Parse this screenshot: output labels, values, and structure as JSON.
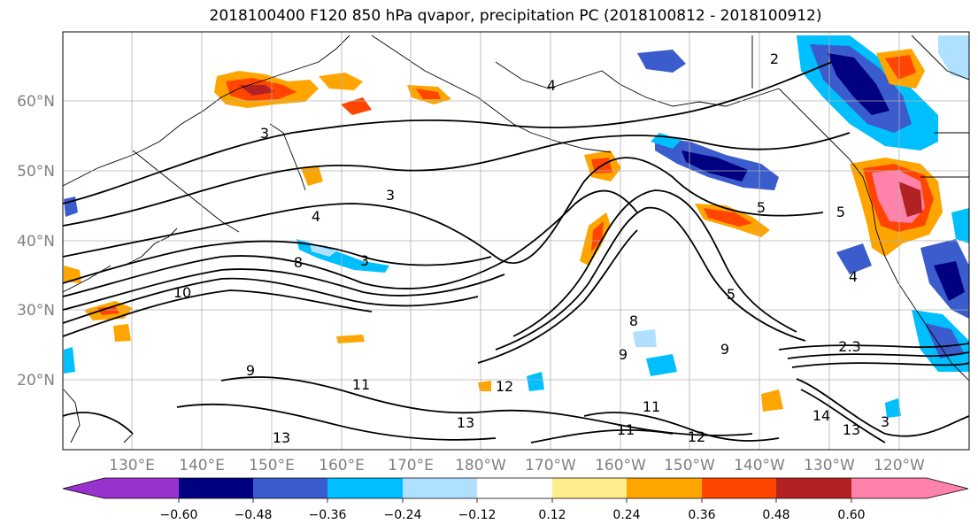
{
  "title": "2018100400 F120 850 hPa qvapor, precipitation PC (2018100812 - 2018100912)",
  "map": {
    "lon_labels": [
      "130°E",
      "140°E",
      "150°E",
      "160°E",
      "170°E",
      "180°W",
      "170°W",
      "160°W",
      "150°W",
      "140°W",
      "130°W",
      "120°W"
    ],
    "lat_labels": [
      "60°N",
      "50°N",
      "40°N",
      "30°N",
      "20°N"
    ],
    "contour_labels": [
      "2",
      "3",
      "3",
      "3",
      "3",
      "5",
      "5",
      "5",
      "8",
      "8",
      "9",
      "9",
      "9",
      "10",
      "11",
      "11",
      "11",
      "12",
      "12",
      "13",
      "13",
      "13",
      "14",
      "2.3",
      "4",
      "4",
      "4"
    ]
  },
  "colorbar": {
    "ticks": [
      "−0.60",
      "−0.48",
      "−0.36",
      "−0.24",
      "−0.12",
      "0.12",
      "0.24",
      "0.36",
      "0.48",
      "0.60"
    ],
    "colors": [
      "#9932cc",
      "#000080",
      "#3a5ccc",
      "#00bfff",
      "#b0e0ff",
      "#ffffff",
      "#ffec8b",
      "#ffa500",
      "#ff4500",
      "#b22222",
      "#ff82ab"
    ]
  }
}
